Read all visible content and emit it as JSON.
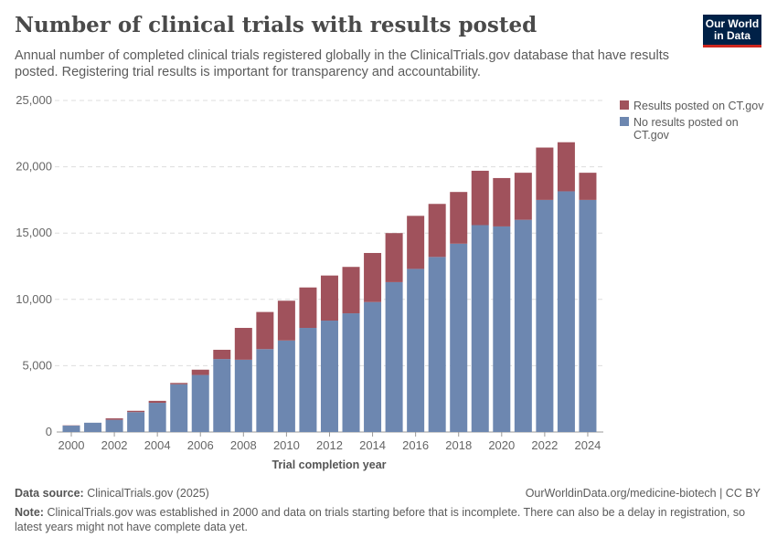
{
  "header": {
    "title": "Number of clinical trials with results posted",
    "subtitle": "Annual number of completed clinical trials registered globally in the ClinicalTrials.gov database that have results posted. Registering trial results is important for transparency and accountability.",
    "logo": "Our World in Data"
  },
  "footer": {
    "source_label": "Data source:",
    "source": "ClinicalTrials.gov (2025)",
    "url": "OurWorldinData.org/medicine-biotech | CC BY",
    "note_label": "Note:",
    "note": "ClinicalTrials.gov was established in 2000 and data on trials starting before that is incomplete. There can also be a delay in registration, so latest years might not have complete data yet."
  },
  "chart_data": {
    "type": "bar",
    "stacked": true,
    "title": "Number of clinical trials with results posted",
    "xlabel": "Trial completion year",
    "ylabel": "",
    "ylim": [
      0,
      25000
    ],
    "grid": true,
    "legend_position": "top-right",
    "yticks": [
      "0",
      "5,000",
      "10,000",
      "15,000",
      "20,000",
      "25,000"
    ],
    "xticks": [
      "2000",
      "2002",
      "2004",
      "2006",
      "2008",
      "2010",
      "2012",
      "2014",
      "2016",
      "2018",
      "2020",
      "2022",
      "2024"
    ],
    "categories": [
      2000,
      2001,
      2002,
      2003,
      2004,
      2005,
      2006,
      2007,
      2008,
      2009,
      2010,
      2011,
      2012,
      2013,
      2014,
      2015,
      2016,
      2017,
      2018,
      2019,
      2020,
      2021,
      2022,
      2023,
      2024
    ],
    "series": [
      {
        "name": "No results posted on CT.gov",
        "color": "#6d87b0",
        "values": [
          480,
          700,
          920,
          1500,
          2200,
          3600,
          4300,
          5500,
          5450,
          6250,
          6900,
          7850,
          8400,
          8950,
          9800,
          11300,
          12300,
          13200,
          14200,
          15600,
          15500,
          16000,
          17500,
          18150,
          17500
        ]
      },
      {
        "name": "Results posted on CT.gov",
        "color": "#a0525c",
        "values": [
          20,
          0,
          110,
          100,
          150,
          100,
          400,
          700,
          2400,
          2800,
          3000,
          3050,
          3400,
          3500,
          3700,
          3700,
          4000,
          4000,
          3900,
          4100,
          3650,
          3550,
          3950,
          3700,
          2050
        ]
      }
    ]
  }
}
